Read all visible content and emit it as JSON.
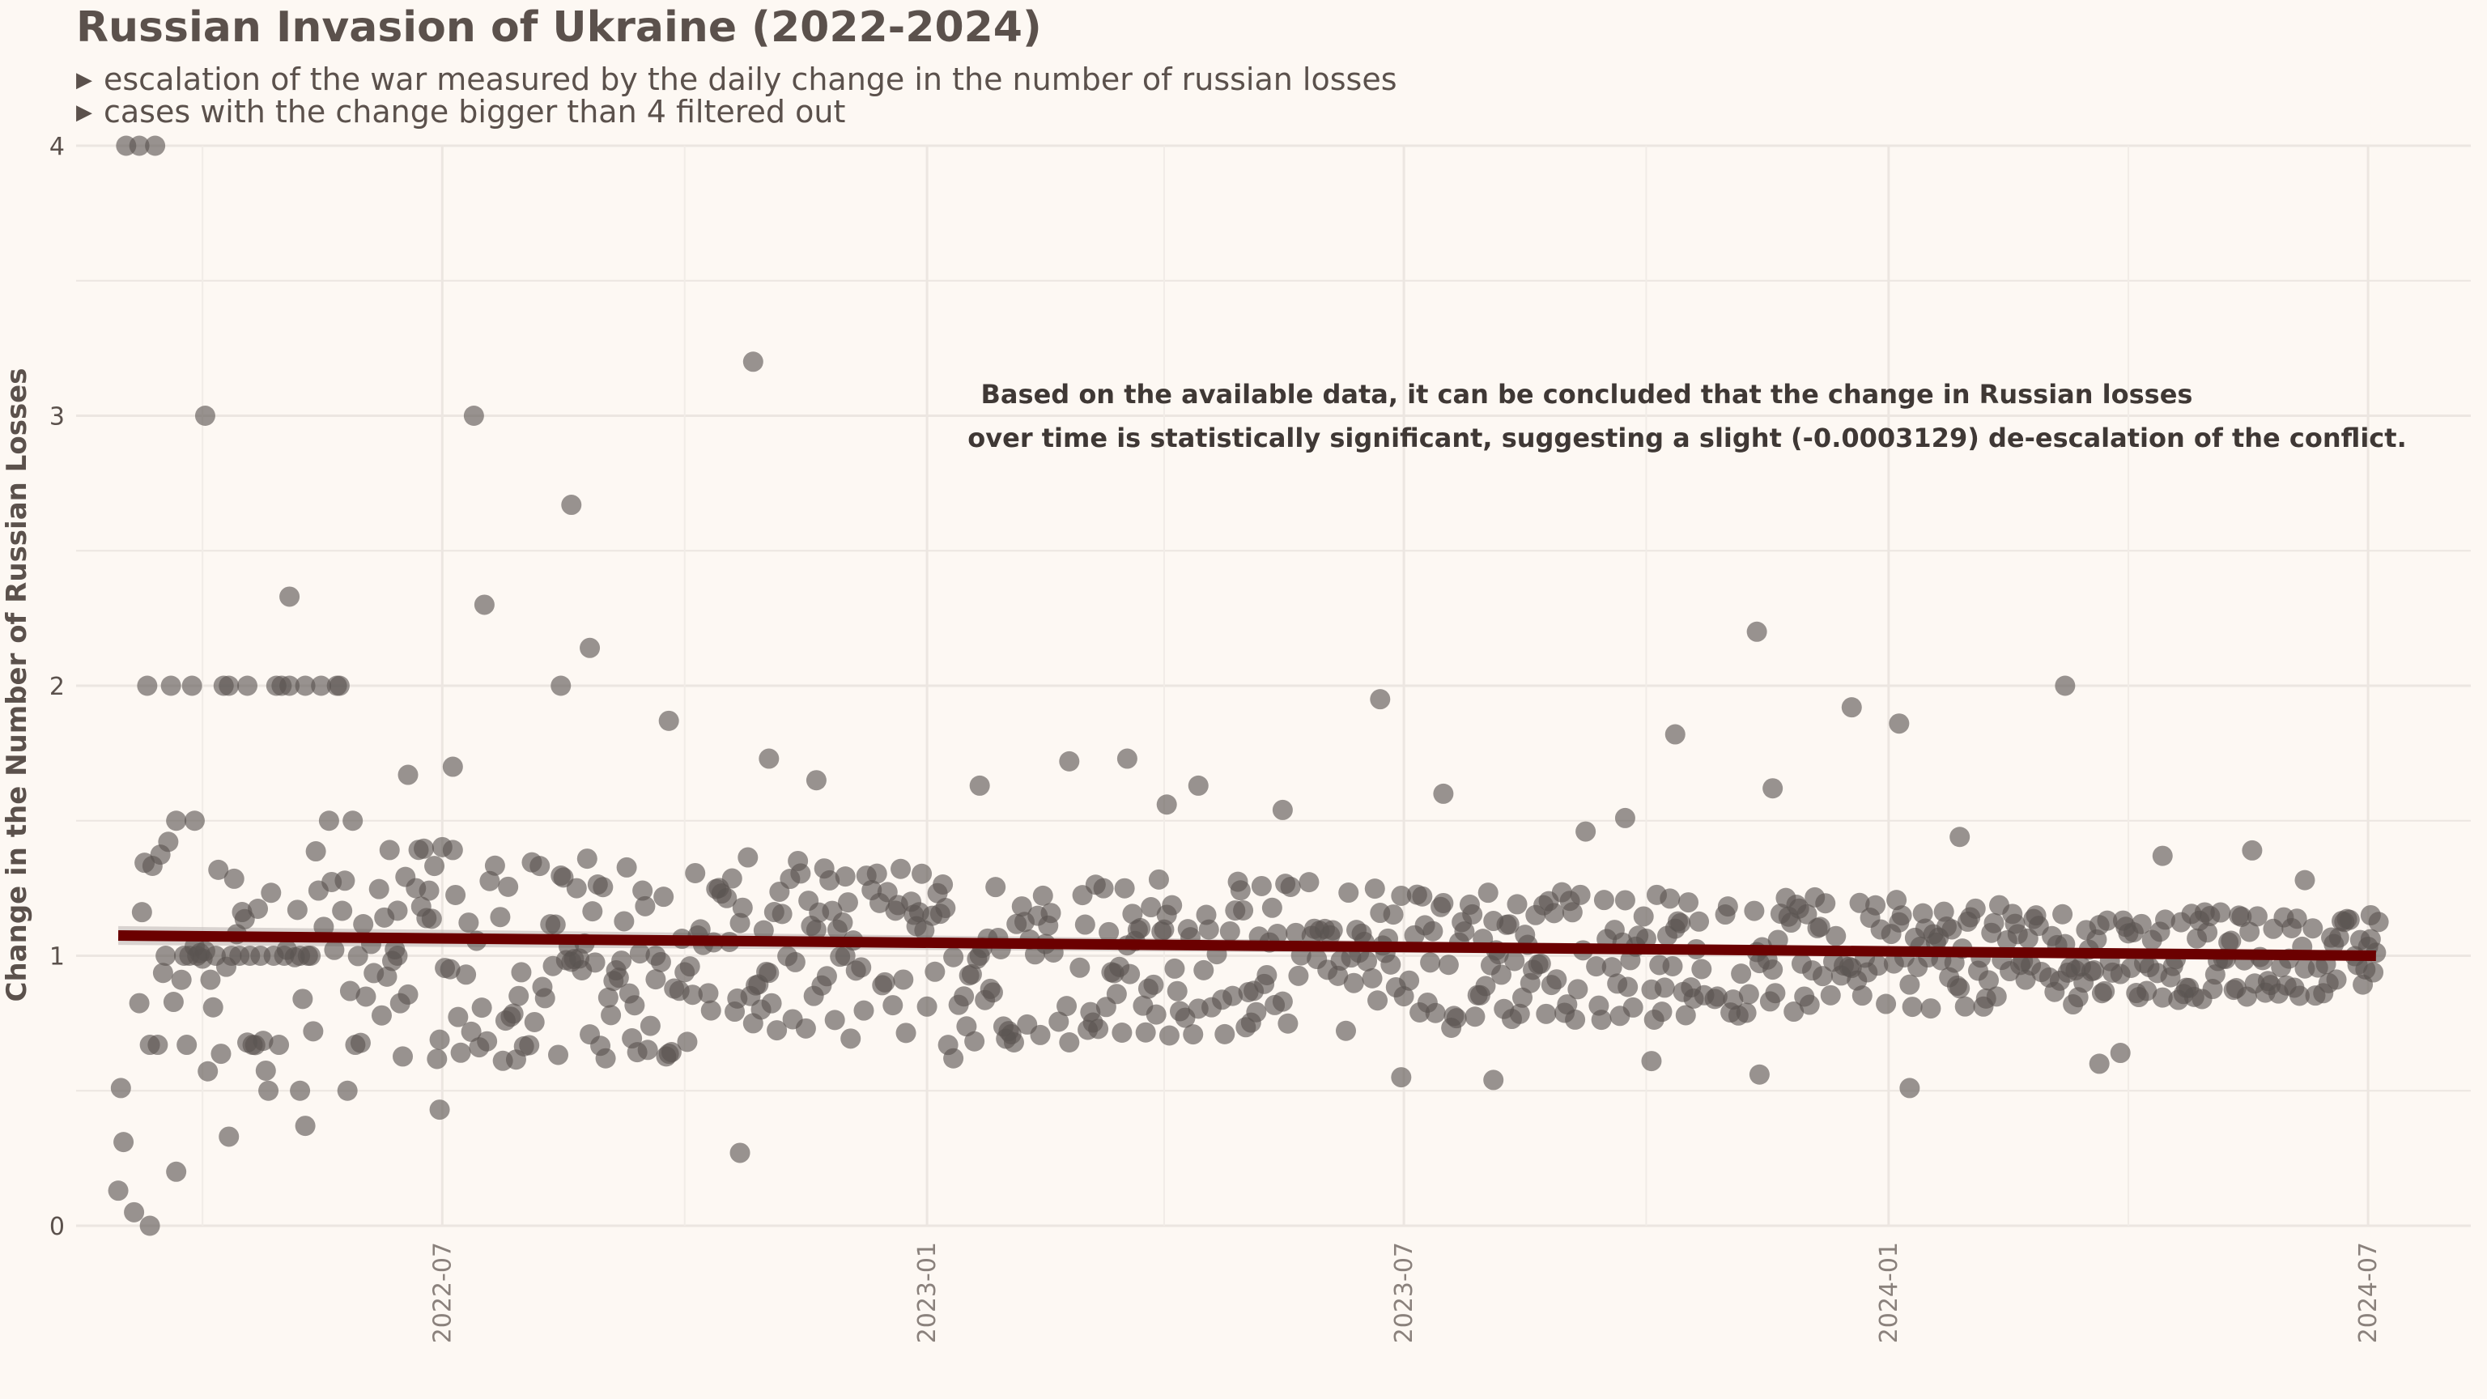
{
  "chart_data": {
    "type": "scatter",
    "title": "Russian Invasion of Ukraine (2022-2024)",
    "subtitle": [
      "escalation of the war measured by the daily change in the number of russian losses",
      "cases with the change bigger than 4 filtered out"
    ],
    "xlabel": "",
    "ylabel": "Change in the Number of Russian Losses",
    "xlim": [
      "2022-02-12",
      "2024-08-09"
    ],
    "ylim": [
      0,
      4
    ],
    "x_ticks": [
      "2022-07",
      "2023-01",
      "2023-07",
      "2024-01",
      "2024-07"
    ],
    "y_ticks": [
      0,
      1,
      2,
      3,
      4
    ],
    "grid": true,
    "legend": "none",
    "annotation": [
      "Based on the available data, it can be concluded that the change in Russian losses",
      "over time is statistically significant, suggesting a slight (-0.0003129) de-escalation of the conflict."
    ],
    "trend_line": {
      "x": [
        "2022-02-28",
        "2024-07-04"
      ],
      "y": [
        1.075,
        1.0
      ],
      "color": "#6b0000",
      "band_color": "#c9c3c0"
    },
    "points_color": "#5a5450",
    "series": [
      {
        "x": [
          "2022-02-28",
          "2022-03-01",
          "2022-03-02",
          "2022-03-03",
          "2022-03-06",
          "2022-03-08",
          "2022-03-12",
          "2022-03-14",
          "2022-03-22",
          "2022-04-02",
          "2022-04-09",
          "2022-04-11",
          "2022-03-29",
          "2022-04-18",
          "2022-05-04",
          "2022-05-10",
          "2022-05-08",
          "2022-06-18",
          "2022-06-30",
          "2022-07-05",
          "2022-07-13",
          "2022-07-17",
          "2022-06-14",
          "2022-08-19",
          "2022-08-15",
          "2022-08-26",
          "2022-09-25",
          "2022-09-20",
          "2022-10-22",
          "2022-10-27",
          "2022-11-02",
          "2022-11-20",
          "2022-12-01",
          "2023-01-11",
          "2023-01-21",
          "2023-02-24",
          "2023-03-18",
          "2023-04-02",
          "2023-04-14",
          "2023-05-16",
          "2023-06-22",
          "2023-06-30",
          "2023-07-16",
          "2023-08-04",
          "2023-09-08",
          "2023-09-23",
          "2023-10-03",
          "2023-10-12",
          "2023-11-12",
          "2023-11-13",
          "2023-11-18",
          "2023-12-18",
          "2024-01-05",
          "2024-01-09",
          "2024-01-28",
          "2024-03-08",
          "2024-03-21",
          "2024-03-29",
          "2024-04-14",
          "2024-05-18",
          "2024-06-07",
          "2024-07-02"
        ],
        "y": [
          0.13,
          0.51,
          0.31,
          4.0,
          0.05,
          4.0,
          0.0,
          4.0,
          0.2,
          3.0,
          2.0,
          0.33,
          1.5,
          2.0,
          2.33,
          0.37,
          0.5,
          1.67,
          0.43,
          1.7,
          3.0,
          2.3,
          1.0,
          2.67,
          2.0,
          2.14,
          1.87,
          1.0,
          0.27,
          3.2,
          1.73,
          1.65,
          1.0,
          0.62,
          1.63,
          1.72,
          1.73,
          1.56,
          1.63,
          1.54,
          1.95,
          0.55,
          1.6,
          0.54,
          1.46,
          1.51,
          0.61,
          1.82,
          2.2,
          0.56,
          1.62,
          1.92,
          1.86,
          0.51,
          1.44,
          2.0,
          0.6,
          0.64,
          1.37,
          1.39,
          1.28,
          1.15
        ]
      }
    ]
  }
}
